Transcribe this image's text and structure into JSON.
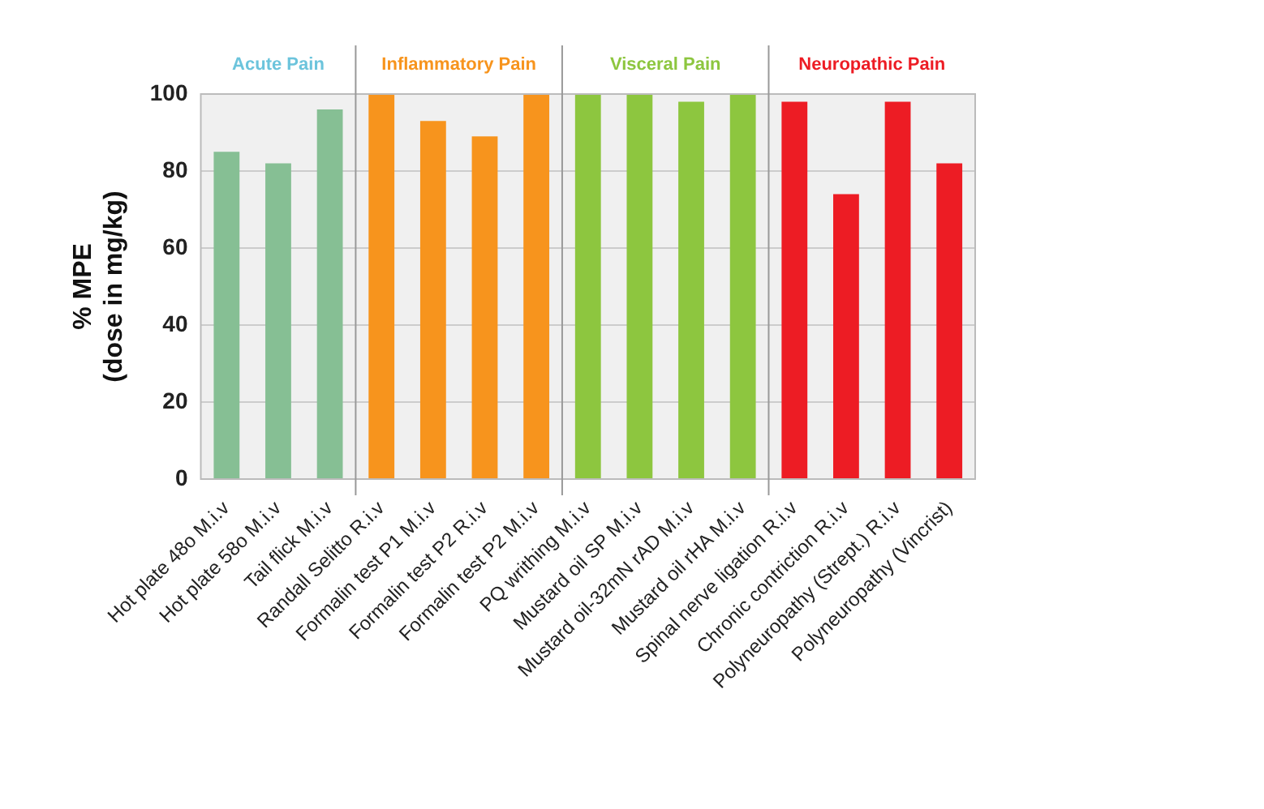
{
  "chart_data": {
    "type": "bar",
    "ylabel": "% MPE\n(dose in mg/kg)",
    "categories": [
      "Hot plate 48o M.i.v",
      "Hot plate 58o M.i.v",
      "Tail flick M.i.v",
      "Randall Selitto R.i.v",
      "Formalin test P1 M.i.v",
      "Formalin test P2 R.i.v",
      "Formalin test P2 M.i.v",
      "PQ writhing M.i.v",
      "Mustard oil SP M.i.v",
      "Mustard oil-32mN rAD M.i.v",
      "Mustard oil rHA M.i.v",
      "Spinal nerve ligation R.i.v",
      "Chronic contriction R.i.v",
      "Polyneuropathy (Strept.) R.i.v",
      "Polyneuropathy (Vincrist)"
    ],
    "series": [
      {
        "name": "Acute Pain",
        "color": "#86bf94",
        "values": [
          85,
          82,
          96,
          null,
          null,
          null,
          null,
          null,
          null,
          null,
          null,
          null,
          null,
          null,
          null
        ]
      },
      {
        "name": "Inflammatory Pain",
        "color": "#f7941d",
        "values": [
          null,
          null,
          null,
          100,
          93,
          89,
          100,
          null,
          null,
          null,
          null,
          null,
          null,
          null,
          null
        ]
      },
      {
        "name": "Visceral Pain",
        "color": "#8dc63f",
        "values": [
          null,
          null,
          null,
          null,
          null,
          null,
          null,
          100,
          100,
          98,
          100,
          null,
          null,
          null,
          null
        ]
      },
      {
        "name": "Neuropathic Pain",
        "color": "#ed1c24",
        "values": [
          null,
          null,
          null,
          null,
          null,
          null,
          null,
          null,
          null,
          null,
          null,
          98,
          74,
          98,
          82
        ]
      }
    ],
    "ylim": [
      0,
      100
    ],
    "yticks": [
      0,
      20,
      40,
      60,
      80,
      100
    ],
    "grid": "y",
    "legend": false
  }
}
